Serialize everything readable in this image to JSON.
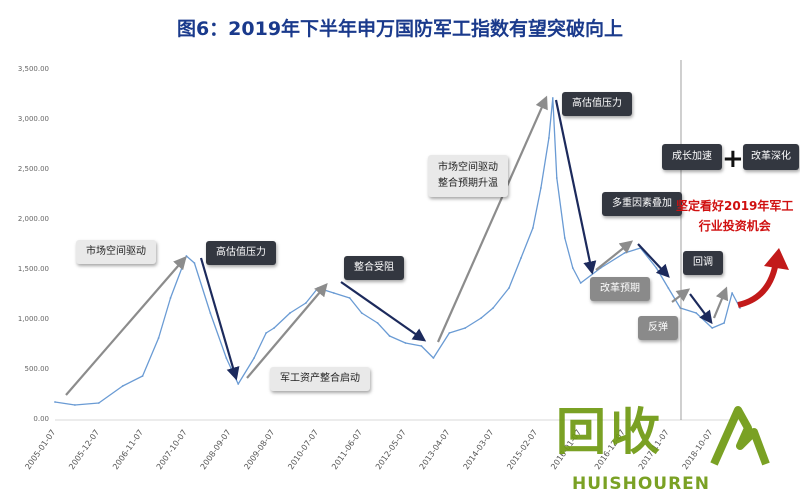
{
  "title": "图6：2019年下半年申万国防军工指数有望突破向上",
  "annotations": {
    "market_drive_1": "市场空间驱动",
    "high_valuation_1": "高估值压力",
    "asset_integration": "军工资产整合启动",
    "integration_delayed": "整合受阻",
    "market_drive_2a": "市场空间驱动",
    "market_drive_2b": "整合预期升温",
    "high_valuation_2": "高估值压力",
    "reform_expectation": "改革预期",
    "multi_factors": "多重因素叠加",
    "rebound": "反弹",
    "pullback": "回调",
    "growth_speedup": "成长加速",
    "plus": "+",
    "reform_deepening": "改革深化",
    "conclusion_line1": "坚定看好2019年军工",
    "conclusion_line2": "行业投资机会"
  },
  "watermark": {
    "cn": "回收",
    "en": "HUISHOUREN"
  },
  "colors": {
    "line": "#6a9bd4",
    "gray_arrow": "#8c8c8c",
    "navy_arrow": "#1c2a5c",
    "red_arrow": "#c21a1a",
    "title": "#1a3a8c"
  },
  "chart_data": {
    "type": "line",
    "ylim": [
      0,
      3500
    ],
    "grid": false,
    "y_ticks": [
      "0.00",
      "500.00",
      "1,000.00",
      "1,500.00",
      "2,000.00",
      "2,500.00",
      "3,000.00",
      "3,500.00"
    ],
    "x_ticks": [
      "2005-01-07",
      "2005-12-07",
      "2006-11-07",
      "2007-10-07",
      "2008-09-07",
      "2009-08-07",
      "2010-07-07",
      "2011-06-07",
      "2012-05-07",
      "2013-04-07",
      "2014-03-07",
      "2015-02-07",
      "2016-01-07",
      "2016-12-07",
      "2017-11-07",
      "2018-10-07"
    ],
    "series": [
      {
        "x": [
          "2005-01",
          "2005-06",
          "2005-12",
          "2006-06",
          "2006-11",
          "2007-03",
          "2007-06",
          "2007-10",
          "2007-12",
          "2008-04",
          "2008-08",
          "2008-11",
          "2009-03",
          "2009-06",
          "2009-08",
          "2009-12",
          "2010-04",
          "2010-07",
          "2010-11",
          "2011-03",
          "2011-06",
          "2011-10",
          "2012-01",
          "2012-05",
          "2012-09",
          "2012-12",
          "2013-04",
          "2013-08",
          "2013-12",
          "2014-03",
          "2014-07",
          "2014-10",
          "2015-01",
          "2015-03",
          "2015-05",
          "2015-06",
          "2015-07",
          "2015-09",
          "2015-11",
          "2016-01",
          "2016-06",
          "2016-12",
          "2017-04",
          "2017-08",
          "2017-11",
          "2018-02",
          "2018-06",
          "2018-10",
          "2019-01",
          "2019-03",
          "2019-05"
        ],
        "values": [
          160,
          130,
          150,
          320,
          420,
          800,
          1200,
          1620,
          1550,
          1050,
          600,
          340,
          600,
          850,
          900,
          1050,
          1150,
          1300,
          1250,
          1200,
          1050,
          950,
          820,
          750,
          720,
          600,
          850,
          900,
          1000,
          1100,
          1300,
          1600,
          1900,
          2300,
          2800,
          3200,
          2400,
          1800,
          1500,
          1350,
          1500,
          1650,
          1700,
          1500,
          1300,
          1100,
          1050,
          900,
          950,
          1250,
          1100
        ]
      }
    ]
  }
}
